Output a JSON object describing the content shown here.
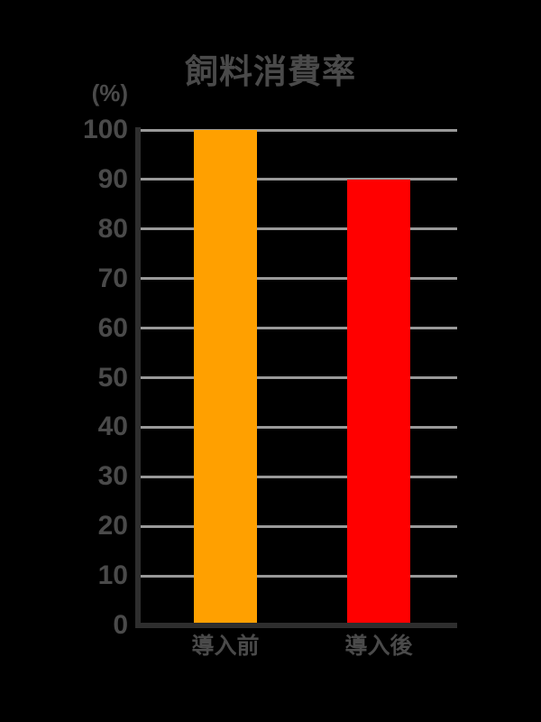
{
  "chart_data": {
    "type": "bar",
    "title": "飼料消費率",
    "ylabel": "(%)",
    "xlabel": "",
    "categories": [
      "導入前",
      "導入後"
    ],
    "values": [
      100,
      90
    ],
    "bar_colors": [
      "#FFA000",
      "#FF0000"
    ],
    "ylim": [
      0,
      100
    ],
    "yticks": [
      0,
      10,
      20,
      30,
      40,
      50,
      60,
      70,
      80,
      90,
      100
    ],
    "grid": "horizontal-only",
    "legend": "none"
  },
  "colors": {
    "background": "#000000",
    "text": "#4A4A4A",
    "gridline": "#999999",
    "axis": "#2E2E2E"
  }
}
